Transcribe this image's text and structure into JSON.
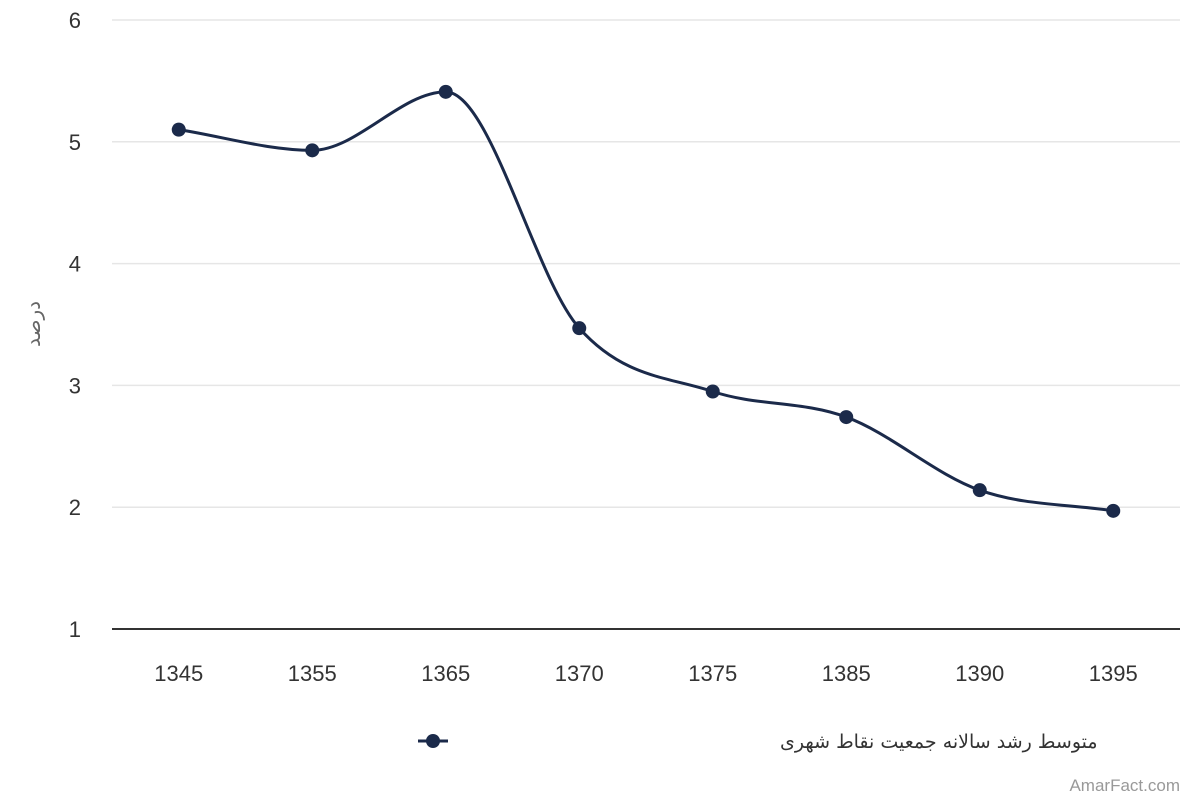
{
  "chart_data": {
    "type": "line",
    "curve": "smooth",
    "ylabel": "درصد",
    "xlabel": "",
    "ylim": [
      1,
      6
    ],
    "yticks": [
      1,
      2,
      3,
      4,
      5,
      6
    ],
    "grid": true,
    "legend_position": "bottom-center",
    "categories": [
      "1345",
      "1355",
      "1365",
      "1370",
      "1375",
      "1385",
      "1390",
      "1395"
    ],
    "series": [
      {
        "name": "متوسط رشد سالانه جمعیت نقاط شهری",
        "color": "#1b2a4a",
        "values": [
          5.1,
          4.93,
          5.41,
          3.47,
          2.95,
          2.74,
          2.14,
          1.97
        ]
      }
    ]
  },
  "credit": "AmarFact.com"
}
